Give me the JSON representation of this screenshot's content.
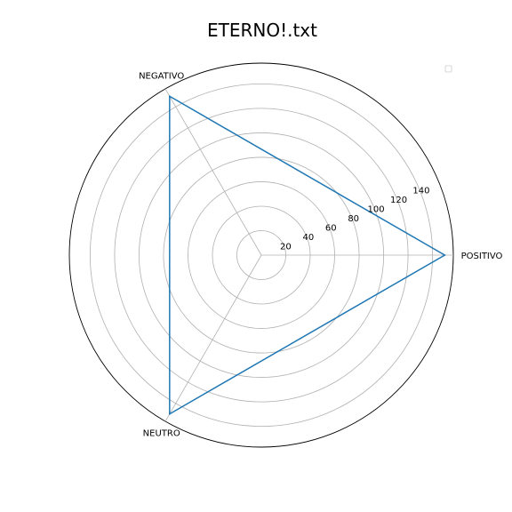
{
  "chart_data": {
    "type": "radar",
    "title": "ETERNO!.txt",
    "categories": [
      "POSITIVO",
      "NEGATIVO",
      "NEUTRO"
    ],
    "series": [
      {
        "values": [
          150,
          150,
          150
        ],
        "color": "#1f77b4"
      }
    ],
    "rlim": [
      0,
      157
    ],
    "rticks": [
      20,
      40,
      60,
      80,
      100,
      120,
      140
    ],
    "grid": true,
    "legend": "top-right"
  }
}
